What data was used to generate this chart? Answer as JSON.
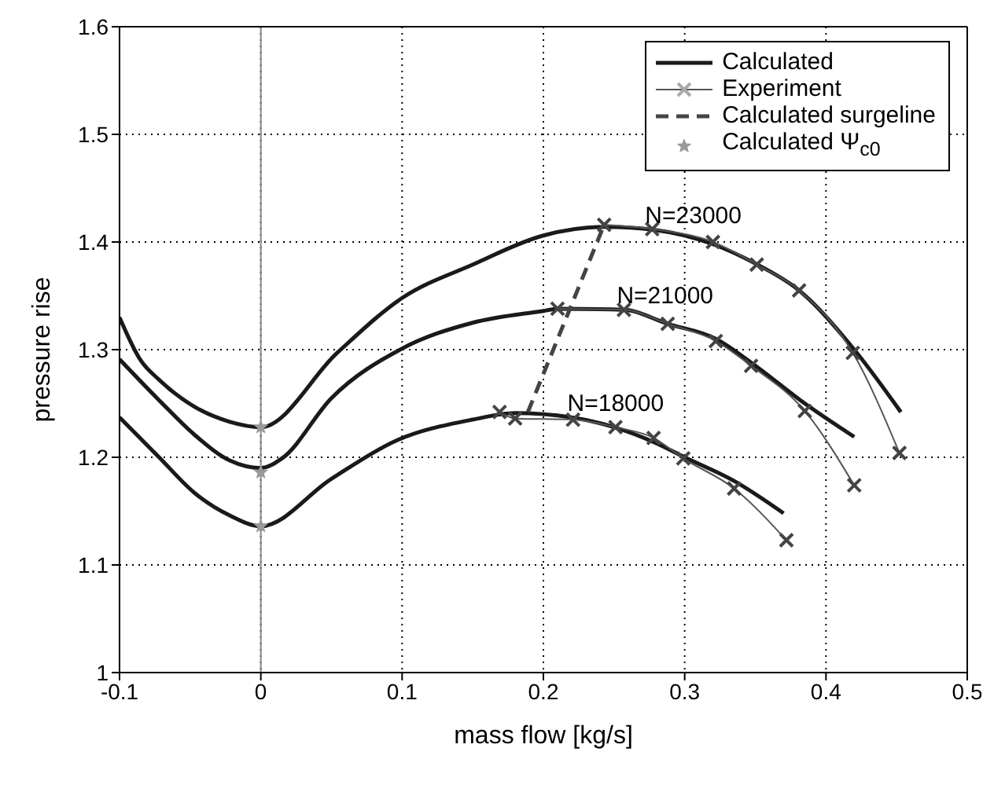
{
  "chart_data": {
    "type": "line",
    "xlabel": "mass flow [kg/s]",
    "ylabel": "pressure rise",
    "xlim": [
      -0.1,
      0.5
    ],
    "xticks": [
      -0.1,
      0,
      0.1,
      0.2,
      0.3,
      0.4,
      0.5
    ],
    "ylim": [
      1,
      1.6
    ],
    "yticks": [
      1,
      1.1,
      1.2,
      1.3,
      1.4,
      1.5,
      1.6
    ],
    "grid": true,
    "legend": "top right",
    "series": [
      {
        "name": "Calculated",
        "color": "#1a1a1a",
        "line_style": "solid",
        "x": [
          -0.1,
          -0.085,
          -0.072,
          -0.047,
          -0.022,
          0,
          0.054,
          0.1,
          0.15,
          0.2,
          0.243,
          0.28,
          0.32,
          0.35,
          0.38,
          0.42,
          0.453
        ],
        "values": [
          1.33,
          1.29,
          1.272,
          1.247,
          1.233,
          1.228,
          1.297,
          1.348,
          1.379,
          1.406,
          1.414,
          1.411,
          1.398,
          1.38,
          1.356,
          1.3,
          1.242
        ]
      },
      {
        "color": "#1a1a1a",
        "line_style": "solid",
        "x": [
          -0.1,
          -0.072,
          -0.047,
          -0.022,
          0,
          0.015,
          0.05,
          0.1,
          0.15,
          0.2,
          0.21,
          0.257,
          0.288,
          0.322,
          0.347,
          0.385,
          0.42
        ],
        "values": [
          1.291,
          1.253,
          1.221,
          1.197,
          1.19,
          1.199,
          1.255,
          1.301,
          1.325,
          1.336,
          1.338,
          1.337,
          1.324,
          1.31,
          1.288,
          1.25,
          1.219
        ]
      },
      {
        "color": "#1a1a1a",
        "line_style": "solid",
        "x": [
          -0.1,
          -0.072,
          -0.047,
          -0.022,
          0,
          0.05,
          0.095,
          0.15,
          0.18,
          0.22,
          0.25,
          0.28,
          0.3,
          0.335,
          0.37
        ],
        "values": [
          1.237,
          1.2,
          1.167,
          1.146,
          1.136,
          1.18,
          1.215,
          1.235,
          1.241,
          1.237,
          1.228,
          1.213,
          1.2,
          1.178,
          1.148
        ]
      },
      {
        "name": "Experiment",
        "color": "#555555",
        "marker": "cross",
        "line_style": "solid",
        "x": [
          0.243,
          0.277,
          0.32,
          0.351,
          0.381,
          0.419,
          0.452
        ],
        "values": [
          1.416,
          1.412,
          1.4,
          1.379,
          1.355,
          1.297,
          1.204
        ]
      },
      {
        "color": "#555555",
        "marker": "cross",
        "line_style": "solid",
        "x": [
          0.21,
          0.257,
          0.288,
          0.322,
          0.347,
          0.385,
          0.42
        ],
        "values": [
          1.338,
          1.337,
          1.324,
          1.308,
          1.285,
          1.243,
          1.174
        ]
      },
      {
        "color": "#555555",
        "marker": "cross",
        "line_style": "solid",
        "x": [
          0.169,
          0.18,
          0.221,
          0.251,
          0.278,
          0.299,
          0.335,
          0.372
        ],
        "values": [
          1.242,
          1.236,
          1.235,
          1.228,
          1.218,
          1.199,
          1.171,
          1.123
        ]
      },
      {
        "name": "Calculated surgeline",
        "color": "#444444",
        "line_style": "dashed",
        "x": [
          0.189,
          0.243
        ],
        "values": [
          1.242,
          1.416
        ]
      },
      {
        "name": "Calculated Ψ$_{c0}$",
        "type": "scatter",
        "color": "#999999",
        "marker": "star",
        "x": [
          0,
          0,
          0
        ],
        "values": [
          1.228,
          1.186,
          1.136
        ]
      }
    ],
    "ref_lines": [
      {
        "axis": "x",
        "value": 0,
        "label": null,
        "color": "#888888"
      }
    ],
    "annotations": [
      {
        "text": "N=23000",
        "x": 0.272,
        "y": 1.412
      },
      {
        "text": "N=21000",
        "x": 0.252,
        "y": 1.337
      },
      {
        "text": "N=18000",
        "x": 0.217,
        "y": 1.237
      }
    ]
  }
}
